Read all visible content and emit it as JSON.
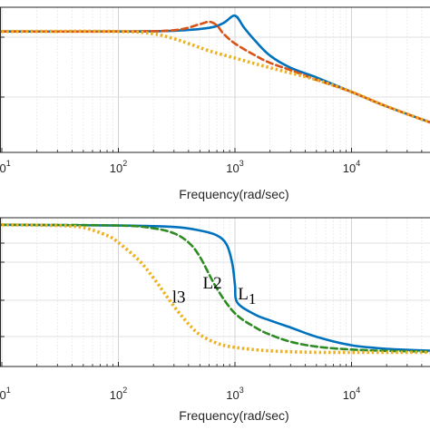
{
  "chart_data": [
    {
      "type": "line",
      "xscale": "log",
      "xlim": [
        10,
        50000
      ],
      "xlabel": "Frequency(rad/sec)",
      "xticks": [
        {
          "base": "10",
          "exp": "1",
          "value": 10
        },
        {
          "base": "10",
          "exp": "2",
          "value": 100
        },
        {
          "base": "10",
          "exp": "3",
          "value": 1000
        },
        {
          "base": "10",
          "exp": "4",
          "value": 10000
        }
      ],
      "ylim": [
        -50,
        10
      ],
      "grid": true,
      "series": [
        {
          "color": "#0072BD",
          "style": "solid",
          "x": [
            10,
            100,
            300,
            600,
            800,
            1000,
            1200,
            1500,
            2000,
            3000,
            5000,
            10000,
            20000,
            50000
          ],
          "y": [
            0,
            0,
            0.3,
            1.5,
            3.5,
            6.5,
            1.5,
            -4,
            -10,
            -15,
            -19,
            -25,
            -31,
            -38
          ]
        },
        {
          "color": "#D95319",
          "style": "dashed",
          "x": [
            10,
            100,
            300,
            500,
            600,
            700,
            800,
            1000,
            1500,
            2000,
            3000,
            5000,
            10000,
            20000,
            50000
          ],
          "y": [
            0,
            0,
            0.5,
            3,
            4,
            2.5,
            -1,
            -5,
            -10,
            -13,
            -16,
            -20,
            -25,
            -31,
            -38
          ]
        },
        {
          "color": "#EDB120",
          "style": "dotted",
          "x": [
            10,
            100,
            200,
            300,
            400,
            600,
            1000,
            2000,
            5000,
            10000,
            20000,
            50000
          ],
          "y": [
            0,
            0,
            -1,
            -3,
            -5,
            -8,
            -11,
            -15,
            -20,
            -25,
            -31,
            -38
          ]
        }
      ]
    },
    {
      "type": "line",
      "xscale": "log",
      "xlim": [
        10,
        50000
      ],
      "xlabel": "Frequency(rad/sec)",
      "xticks": [
        {
          "base": "10",
          "exp": "1",
          "value": 10
        },
        {
          "base": "10",
          "exp": "2",
          "value": 100
        },
        {
          "base": "10",
          "exp": "3",
          "value": 1000
        },
        {
          "base": "10",
          "exp": "4",
          "value": 10000
        }
      ],
      "ylim": [
        -200,
        10
      ],
      "grid": true,
      "annotations": [
        {
          "text": "l3",
          "x": 330,
          "y": -110
        },
        {
          "text": "L2",
          "x": 640,
          "y": -90
        },
        {
          "text": "L1",
          "sub": "1",
          "x": 1270,
          "y": -105
        }
      ],
      "series": [
        {
          "color": "#0072BD",
          "style": "solid",
          "x": [
            10,
            100,
            300,
            500,
            700,
            850,
            950,
            1000,
            1050,
            1500,
            2000,
            3000,
            5000,
            10000,
            20000,
            50000
          ],
          "y": [
            0,
            -1,
            -3,
            -8,
            -15,
            -28,
            -55,
            -85,
            -110,
            -127,
            -135,
            -145,
            -158,
            -170,
            -175,
            -178
          ]
        },
        {
          "color": "#2E8B22",
          "style": "dashed",
          "x": [
            10,
            100,
            200,
            300,
            400,
            500,
            700,
            1000,
            1500,
            2000,
            3000,
            5000,
            10000,
            20000,
            50000
          ],
          "y": [
            0,
            -1,
            -5,
            -12,
            -25,
            -45,
            -90,
            -125,
            -145,
            -155,
            -165,
            -172,
            -176,
            -178,
            -179
          ]
        },
        {
          "color": "#EDB120",
          "style": "dotted",
          "x": [
            10,
            30,
            50,
            80,
            100,
            150,
            200,
            300,
            400,
            500,
            700,
            1000,
            2000,
            5000,
            10000,
            50000
          ],
          "y": [
            0,
            -1,
            -4,
            -15,
            -25,
            -50,
            -75,
            -115,
            -140,
            -155,
            -167,
            -173,
            -178,
            -180,
            -180,
            -180
          ]
        }
      ]
    }
  ]
}
